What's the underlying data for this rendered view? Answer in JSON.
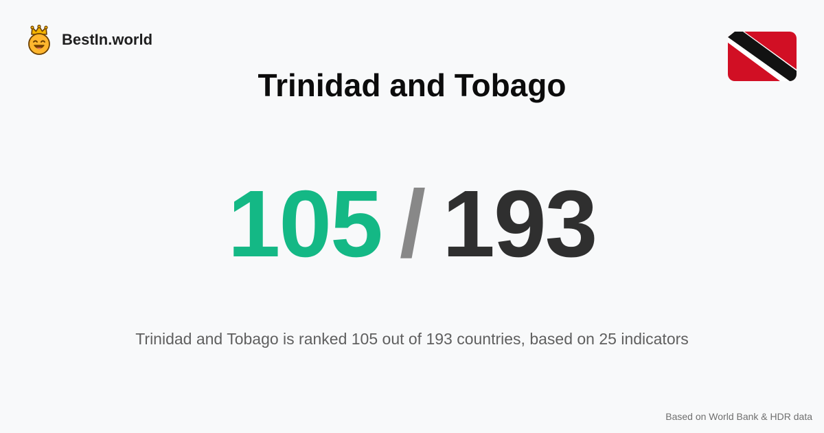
{
  "brand": {
    "name": "BestIn.world",
    "logo_icon": "crowned-smiley-icon"
  },
  "flag": {
    "icon": "trinidad-and-tobago-flag-icon",
    "colors": {
      "field": "#d10f24",
      "stripe": "#121212",
      "border": "#ffffff"
    }
  },
  "country": {
    "name": "Trinidad and Tobago"
  },
  "ranking": {
    "rank": "105",
    "separator": "/",
    "total": "193"
  },
  "summary": {
    "text": "Trinidad and Tobago is ranked 105 out of 193 countries, based on 25 indicators"
  },
  "footer": {
    "source_note": "Based on World Bank & HDR data"
  },
  "colors": {
    "background": "#f8f9fa",
    "rank_value": "#14b885",
    "rank_separator": "#888888",
    "rank_total": "#2f2f2f",
    "title": "#0c0c0c",
    "summary": "#5f5f5f"
  }
}
